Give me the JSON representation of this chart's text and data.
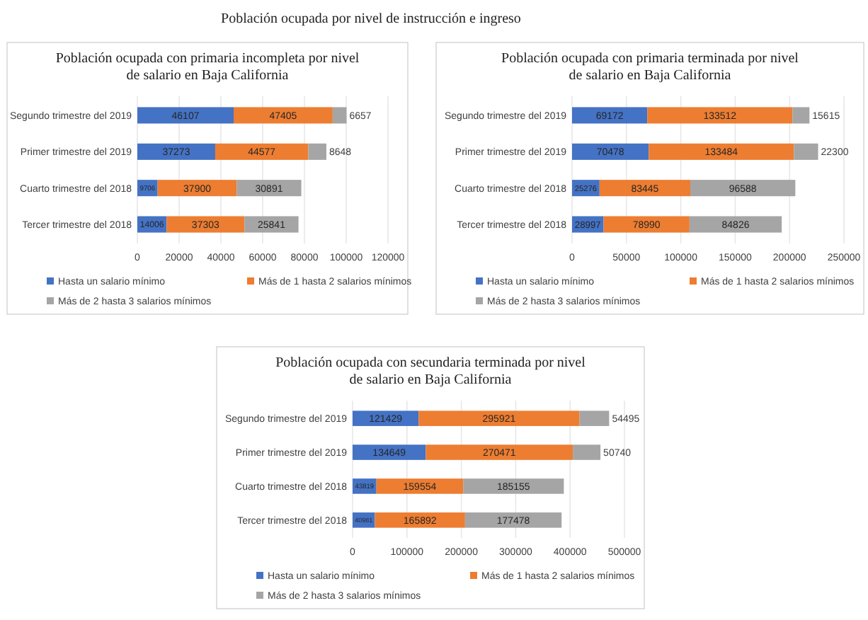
{
  "chart_data": [
    {
      "type": "bar",
      "orientation": "horizontal",
      "stacked": true,
      "title": "Población ocupada con primaria incompleta por nivel de salario en Baja California",
      "annotations": [
        "Población ocupada por nivel de instrucción e ingreso"
      ],
      "categories": [
        "Segundo trimestre del 2019",
        "Primer trimestre del 2019",
        "Cuarto trimestre del 2018",
        "Tercer trimestre del 2018"
      ],
      "series": [
        {
          "name": "Hasta un salario mínimo",
          "color": "#4472c4",
          "values": [
            46107,
            37273,
            9706,
            14006
          ]
        },
        {
          "name": "Más de 1 hasta 2 salarios mínimos",
          "color": "#ed7d31",
          "values": [
            47405,
            44577,
            37900,
            37303
          ]
        },
        {
          "name": "Más de 2 hasta 3 salarios mínimos",
          "color": "#a5a5a5",
          "values": [
            6657,
            8648,
            30891,
            25841
          ]
        }
      ],
      "xlim": [
        0,
        120000
      ],
      "xticks": [
        0,
        20000,
        40000,
        60000,
        80000,
        100000,
        120000
      ],
      "grid": "x",
      "legend": "bottom",
      "data_labels": true
    },
    {
      "type": "bar",
      "orientation": "horizontal",
      "stacked": true,
      "title": "Población ocupada con primaria terminada por nivel de salario en Baja California",
      "categories": [
        "Segundo trimestre del 2019",
        "Primer trimestre del 2019",
        "Cuarto trimestre del 2018",
        "Tercer trimestre del 2018"
      ],
      "series": [
        {
          "name": "Hasta un salario mínimo",
          "color": "#4472c4",
          "values": [
            69172,
            70478,
            25276,
            28997
          ]
        },
        {
          "name": "Más de 1 hasta 2 salarios mínimos",
          "color": "#ed7d31",
          "values": [
            133512,
            133484,
            83445,
            78990
          ]
        },
        {
          "name": "Más de 2 hasta 3 salarios mínimos",
          "color": "#a5a5a5",
          "values": [
            15615,
            22300,
            96588,
            84826
          ]
        }
      ],
      "xlim": [
        0,
        250000
      ],
      "xticks": [
        0,
        50000,
        100000,
        150000,
        200000,
        250000
      ],
      "grid": "x",
      "legend": "bottom",
      "data_labels": true
    },
    {
      "type": "bar",
      "orientation": "horizontal",
      "stacked": true,
      "title": "Población ocupada con secundaria terminada por nivel de salario en Baja California",
      "categories": [
        "Segundo trimestre del 2019",
        "Primer trimestre del 2019",
        "Cuarto trimestre del 2018",
        "Tercer trimestre del 2018"
      ],
      "series": [
        {
          "name": "Hasta un salario mínimo",
          "color": "#4472c4",
          "values": [
            121429,
            134649,
            43819,
            40981
          ]
        },
        {
          "name": "Más de 1 hasta 2 salarios mínimos",
          "color": "#ed7d31",
          "values": [
            295921,
            270471,
            159554,
            165892
          ]
        },
        {
          "name": "Más de 2 hasta 3 salarios mínimos",
          "color": "#a5a5a5",
          "values": [
            54495,
            50740,
            185155,
            177478
          ]
        }
      ],
      "xlim": [
        0,
        500000
      ],
      "xticks": [
        0,
        100000,
        200000,
        300000,
        400000,
        500000
      ],
      "grid": "x",
      "legend": "bottom",
      "data_labels": true
    }
  ]
}
